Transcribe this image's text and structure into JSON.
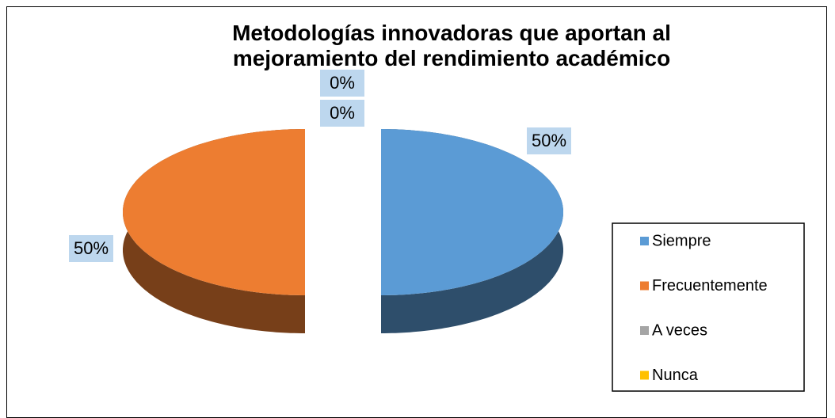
{
  "chart_data": {
    "type": "pie3d",
    "title": "Metodologías innovadoras que aportan al mejoramiento del rendimiento académico",
    "categories": [
      "Siempre",
      "Frecuentemente",
      "A veces",
      "Nunca"
    ],
    "values": [
      50,
      50,
      0,
      0
    ],
    "value_labels": [
      "50%",
      "50%",
      "0%",
      "0%"
    ],
    "colors": [
      "#5b9bd5",
      "#ed7d31",
      "#a5a5a5",
      "#ffc000"
    ],
    "legend": "right"
  }
}
